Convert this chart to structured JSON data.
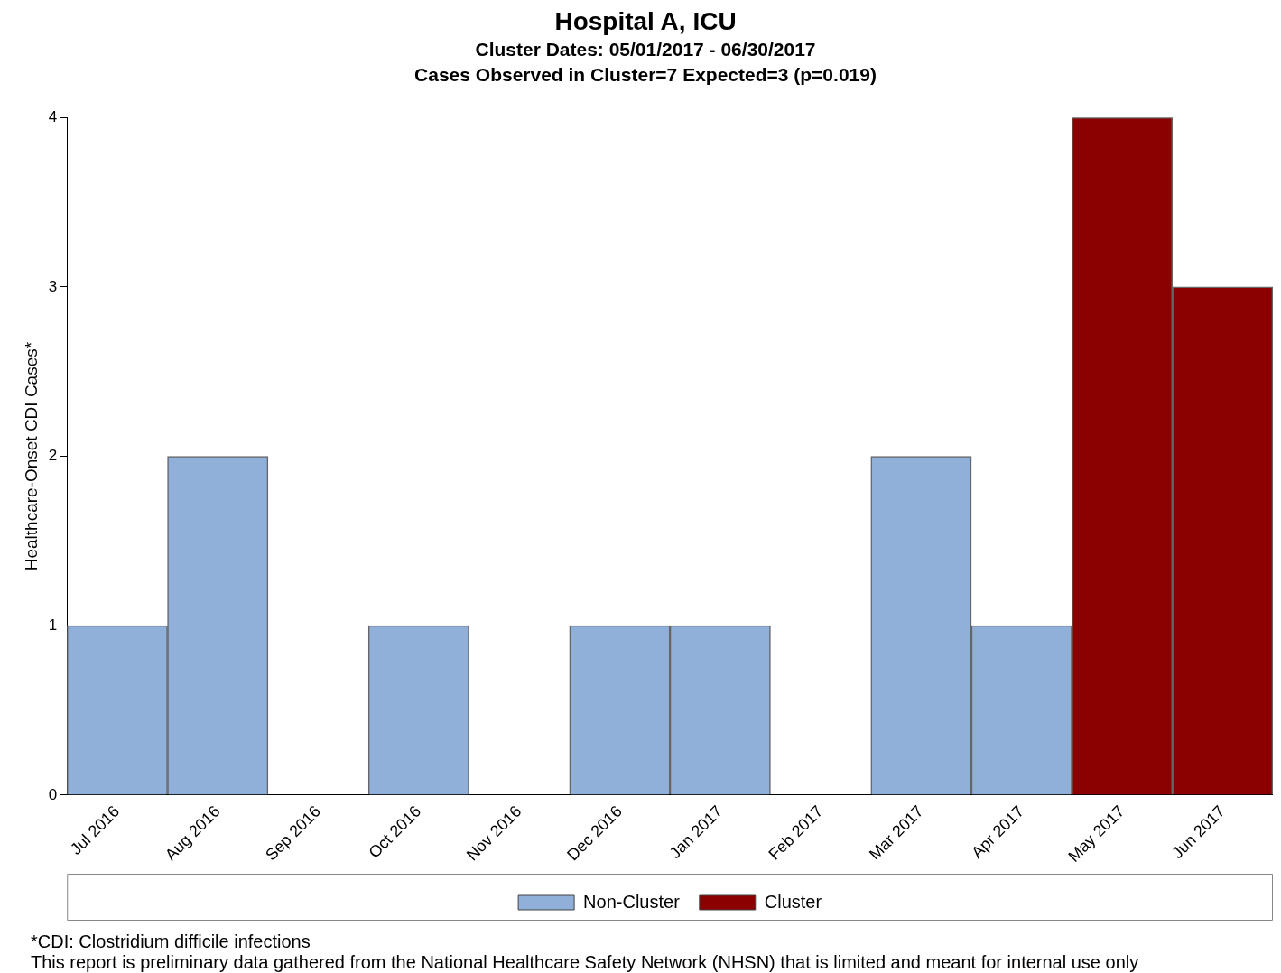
{
  "chart_data": {
    "type": "bar",
    "title": "Hospital A, ICU",
    "subtitle": "Cluster Dates: 05/01/2017 - 06/30/2017\nCases Observed in Cluster=7 Expected=3 (p=0.019)",
    "ylabel": "Healthcare-Onset CDI Cases*",
    "categories": [
      "Jul 2016",
      "Aug 2016",
      "Sep 2016",
      "Oct 2016",
      "Nov 2016",
      "Dec 2016",
      "Jan 2017",
      "Feb 2017",
      "Mar 2017",
      "Apr 2017",
      "May 2017",
      "Jun 2017"
    ],
    "series": [
      {
        "name": "Non-Cluster",
        "color": "#90afd9",
        "values": [
          1,
          2,
          0,
          1,
          0,
          1,
          1,
          0,
          2,
          1,
          null,
          null
        ]
      },
      {
        "name": "Cluster",
        "color": "#8b0000",
        "values": [
          null,
          null,
          null,
          null,
          null,
          null,
          null,
          null,
          null,
          null,
          4,
          3
        ]
      }
    ],
    "stacked": true,
    "ylim": [
      0,
      4
    ],
    "yticks": [
      0,
      1,
      2,
      3,
      4
    ],
    "grid": false,
    "legend": "bottom",
    "annotations": [
      "*CDI: Clostridium difficile infections",
      "This report is preliminary data gathered from the National Healthcare Safety Network (NHSN) that is limited and meant for internal use only"
    ]
  }
}
